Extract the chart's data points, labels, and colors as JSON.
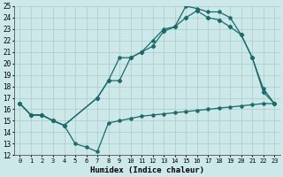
{
  "xlabel": "Humidex (Indice chaleur)",
  "bg_color": "#cce8e8",
  "line_color": "#1a6b6b",
  "grid_color": "#aacccc",
  "xlim": [
    -0.5,
    23.5
  ],
  "ylim": [
    12,
    25
  ],
  "xticks": [
    0,
    1,
    2,
    3,
    4,
    5,
    6,
    7,
    8,
    9,
    10,
    11,
    12,
    13,
    14,
    15,
    16,
    17,
    18,
    19,
    20,
    21,
    22,
    23
  ],
  "yticks": [
    12,
    13,
    14,
    15,
    16,
    17,
    18,
    19,
    20,
    21,
    22,
    23,
    24,
    25
  ],
  "line1_x": [
    0,
    1,
    2,
    3,
    4,
    5,
    6,
    7,
    8,
    9,
    10,
    11,
    12,
    13,
    14,
    15,
    16,
    17,
    18,
    19,
    20,
    21,
    22,
    23
  ],
  "line1_y": [
    16.5,
    15.5,
    15.5,
    15.0,
    14.6,
    13.0,
    12.7,
    12.3,
    14.8,
    15.0,
    15.2,
    15.4,
    15.5,
    15.6,
    15.7,
    15.8,
    15.9,
    16.0,
    16.1,
    16.2,
    16.3,
    16.4,
    16.5,
    16.5
  ],
  "line2_x": [
    0,
    1,
    2,
    3,
    4,
    7,
    8,
    9,
    10,
    11,
    12,
    13,
    14,
    15,
    16,
    17,
    18,
    19,
    20,
    21,
    22,
    23
  ],
  "line2_y": [
    16.5,
    15.5,
    15.5,
    15.0,
    14.6,
    17.0,
    18.5,
    20.5,
    20.5,
    21.0,
    22.0,
    23.0,
    23.2,
    25.0,
    24.8,
    24.5,
    24.5,
    24.0,
    22.5,
    20.5,
    17.8,
    16.5
  ],
  "line3_x": [
    0,
    1,
    2,
    3,
    4,
    7,
    8,
    9,
    10,
    11,
    12,
    13,
    14,
    15,
    16,
    17,
    18,
    19,
    20,
    21,
    22,
    23
  ],
  "line3_y": [
    16.5,
    15.5,
    15.5,
    15.0,
    14.6,
    17.0,
    18.5,
    18.5,
    20.5,
    21.0,
    21.5,
    22.8,
    23.2,
    24.0,
    24.6,
    24.0,
    23.8,
    23.2,
    22.5,
    20.5,
    17.5,
    16.5
  ]
}
